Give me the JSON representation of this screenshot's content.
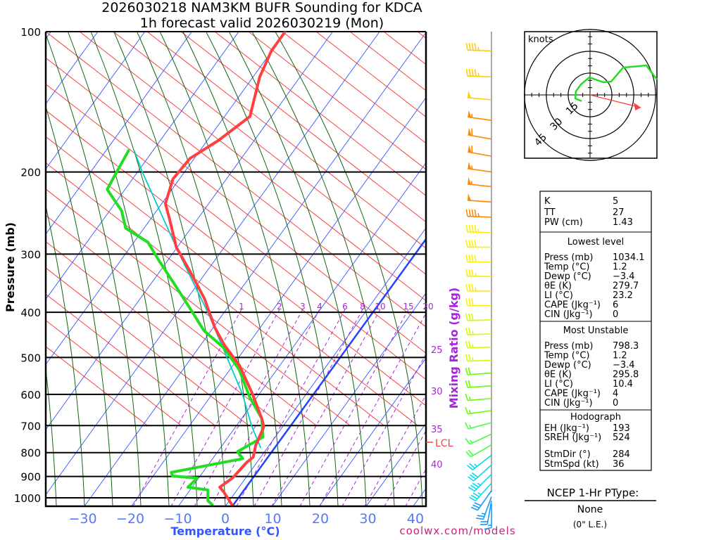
{
  "title": {
    "line1": "2026030218 NAM3KM BUFR Sounding for KDCA",
    "line2": "1h forecast valid 2026030219 (Mon)"
  },
  "credit": "coolwx.com/models",
  "chart_data": {
    "type": "line",
    "subtype": "skew-T log-P",
    "xlabel": "Temperature (°C)",
    "ylabel": "Pressure (mb)",
    "mixing_ratio_label": "Mixing Ratio (g/kg)",
    "x_ticks": [
      -30,
      -20,
      -10,
      0,
      10,
      20,
      30,
      40
    ],
    "y_ticks": [
      100,
      200,
      300,
      400,
      500,
      600,
      700,
      800,
      900,
      1000
    ],
    "ylim": [
      1040,
      100
    ],
    "mixing_ratio_ticks": [
      "1",
      "2",
      "3",
      "4",
      "6",
      "8",
      "10",
      "15",
      "20"
    ],
    "mixing_ratio_ticks_right": [
      "25",
      "30",
      "35",
      "40"
    ],
    "lcl_label": "LCL",
    "lcl_pressure": 780,
    "temperature": {
      "color": "#ff4040",
      "points": [
        [
          1035,
          1.2
        ],
        [
          972,
          -2.5
        ],
        [
          949,
          -4.1
        ],
        [
          907,
          -2.8
        ],
        [
          841,
          -2.2
        ],
        [
          818,
          -1.6
        ],
        [
          771,
          -2.9
        ],
        [
          704,
          -4.0
        ],
        [
          676,
          -5.7
        ],
        [
          598,
          -11.5
        ],
        [
          520,
          -18.6
        ],
        [
          469,
          -25.1
        ],
        [
          431,
          -29.7
        ],
        [
          374,
          -36.3
        ],
        [
          326,
          -43.7
        ],
        [
          290,
          -50.2
        ],
        [
          251,
          -56.2
        ],
        [
          234,
          -59.2
        ],
        [
          207,
          -61.4
        ],
        [
          187,
          -60.9
        ],
        [
          171,
          -57.6
        ],
        [
          152,
          -54.6
        ],
        [
          125,
          -58.6
        ],
        [
          110,
          -60.1
        ],
        [
          100,
          -60.1
        ]
      ]
    },
    "dewpoint": {
      "color": "#22dd22",
      "points": [
        [
          1035,
          -3.0
        ],
        [
          1014,
          -4.6
        ],
        [
          962,
          -6.2
        ],
        [
          949,
          -10.9
        ],
        [
          907,
          -10.3
        ],
        [
          898,
          -15.9
        ],
        [
          882,
          -16.7
        ],
        [
          824,
          -3.6
        ],
        [
          796,
          -5.8
        ],
        [
          741,
          -2.6
        ],
        [
          676,
          -5.7
        ],
        [
          609,
          -11.5
        ],
        [
          530,
          -18.1
        ],
        [
          477,
          -24.6
        ],
        [
          438,
          -31.5
        ],
        [
          381,
          -39.6
        ],
        [
          343,
          -45.8
        ],
        [
          309,
          -52.0
        ],
        [
          283,
          -57.0
        ],
        [
          264,
          -63.9
        ],
        [
          242,
          -67.5
        ],
        [
          218,
          -73.8
        ],
        [
          207,
          -74.2
        ],
        [
          180,
          -75.2
        ]
      ]
    },
    "wetbulb_parcel": {
      "color": "#00cccc",
      "points": [
        [
          780,
          -1.5
        ],
        [
          700,
          -6.8
        ],
        [
          600,
          -13.5
        ],
        [
          500,
          -22.5
        ],
        [
          400,
          -33.5
        ],
        [
          300,
          -48.5
        ],
        [
          200,
          -69
        ],
        [
          180,
          -74
        ]
      ]
    },
    "winds": [
      {
        "p": 110,
        "dir": 272,
        "spd": 45
      },
      {
        "p": 125,
        "dir": 272,
        "spd": 45
      },
      {
        "p": 140,
        "dir": 275,
        "spd": 50
      },
      {
        "p": 155,
        "dir": 278,
        "spd": 55
      },
      {
        "p": 170,
        "dir": 280,
        "spd": 60
      },
      {
        "p": 185,
        "dir": 280,
        "spd": 60
      },
      {
        "p": 200,
        "dir": 278,
        "spd": 55
      },
      {
        "p": 215,
        "dir": 276,
        "spd": 55
      },
      {
        "p": 232,
        "dir": 274,
        "spd": 50
      },
      {
        "p": 250,
        "dir": 272,
        "spd": 45
      },
      {
        "p": 270,
        "dir": 272,
        "spd": 45
      },
      {
        "p": 290,
        "dir": 270,
        "spd": 40
      },
      {
        "p": 312,
        "dir": 270,
        "spd": 40
      },
      {
        "p": 335,
        "dir": 270,
        "spd": 35
      },
      {
        "p": 360,
        "dir": 270,
        "spd": 35
      },
      {
        "p": 387,
        "dir": 270,
        "spd": 30
      },
      {
        "p": 415,
        "dir": 268,
        "spd": 30
      },
      {
        "p": 445,
        "dir": 268,
        "spd": 25
      },
      {
        "p": 475,
        "dir": 268,
        "spd": 25
      },
      {
        "p": 507,
        "dir": 268,
        "spd": 25
      },
      {
        "p": 540,
        "dir": 266,
        "spd": 20
      },
      {
        "p": 575,
        "dir": 266,
        "spd": 20
      },
      {
        "p": 612,
        "dir": 265,
        "spd": 15
      },
      {
        "p": 650,
        "dir": 262,
        "spd": 15
      },
      {
        "p": 690,
        "dir": 255,
        "spd": 15
      },
      {
        "p": 730,
        "dir": 245,
        "spd": 15
      },
      {
        "p": 770,
        "dir": 240,
        "spd": 20
      },
      {
        "p": 810,
        "dir": 232,
        "spd": 25
      },
      {
        "p": 850,
        "dir": 228,
        "spd": 30
      },
      {
        "p": 890,
        "dir": 225,
        "spd": 35
      },
      {
        "p": 930,
        "dir": 222,
        "spd": 35
      },
      {
        "p": 965,
        "dir": 215,
        "spd": 30
      },
      {
        "p": 995,
        "dir": 200,
        "spd": 25
      },
      {
        "p": 1015,
        "dir": 190,
        "spd": 20
      },
      {
        "p": 1030,
        "dir": 180,
        "spd": 15
      }
    ]
  },
  "hodograph": {
    "unit_label": "knots",
    "rings": [
      "15",
      "30",
      "45"
    ],
    "trace_uv": [
      [
        -5.8,
        -4.3
      ],
      [
        -10.1,
        -2.4
      ],
      [
        -9.7,
        2.4
      ],
      [
        -6.3,
        7.2
      ],
      [
        -0.5,
        12.1
      ],
      [
        9.2,
        8.7
      ],
      [
        14.5,
        9.2
      ],
      [
        22.7,
        18.8
      ],
      [
        38.6,
        20.3
      ],
      [
        45.9,
        10.6
      ]
    ],
    "storm_motion_uv": [
      34.9,
      -8.7
    ],
    "trace_color": "#22dd22",
    "storm_color": "#ff4040"
  },
  "indices": {
    "top": [
      {
        "label": "K",
        "value": "5"
      },
      {
        "label": "TT",
        "value": "27"
      },
      {
        "label": "PW (cm)",
        "value": "1.43"
      }
    ],
    "lowest_level": {
      "header": "Lowest level",
      "rows": [
        {
          "label": "Press (mb)",
          "value": "1034.1"
        },
        {
          "label": "Temp (°C)",
          "value": "1.2"
        },
        {
          "label": "Dewp (°C)",
          "value": "−3.4"
        },
        {
          "label": "θE (K)",
          "value": "279.7"
        },
        {
          "label": "LI (°C)",
          "value": "23.2"
        },
        {
          "label": "CAPE (Jkg⁻¹)",
          "value": "6"
        },
        {
          "label": "CIN (Jkg⁻¹)",
          "value": "0"
        }
      ]
    },
    "most_unstable": {
      "header": "Most Unstable",
      "rows": [
        {
          "label": "Press (mb)",
          "value": "798.3"
        },
        {
          "label": "Temp (°C)",
          "value": "1.2"
        },
        {
          "label": "Dewp (°C)",
          "value": "−3.4"
        },
        {
          "label": "θE (K)",
          "value": "295.8"
        },
        {
          "label": "LI (°C)",
          "value": "10.4"
        },
        {
          "label": "CAPE (Jkg⁻¹)",
          "value": "4"
        },
        {
          "label": "CIN (Jkg⁻¹)",
          "value": "0"
        }
      ]
    },
    "hodograph": {
      "header": "Hodograph",
      "rows": [
        {
          "label": "EH (Jkg⁻¹)",
          "value": "193"
        },
        {
          "label": "SREH (Jkg⁻¹)",
          "value": "524"
        },
        {
          "label": "StmDir (°)",
          "value": "284"
        },
        {
          "label": "StmSpd (kt)",
          "value": "36"
        }
      ]
    }
  },
  "ptype": {
    "header": "NCEP 1-Hr PType:",
    "value": "None",
    "note": "(0\" L.E.)"
  }
}
